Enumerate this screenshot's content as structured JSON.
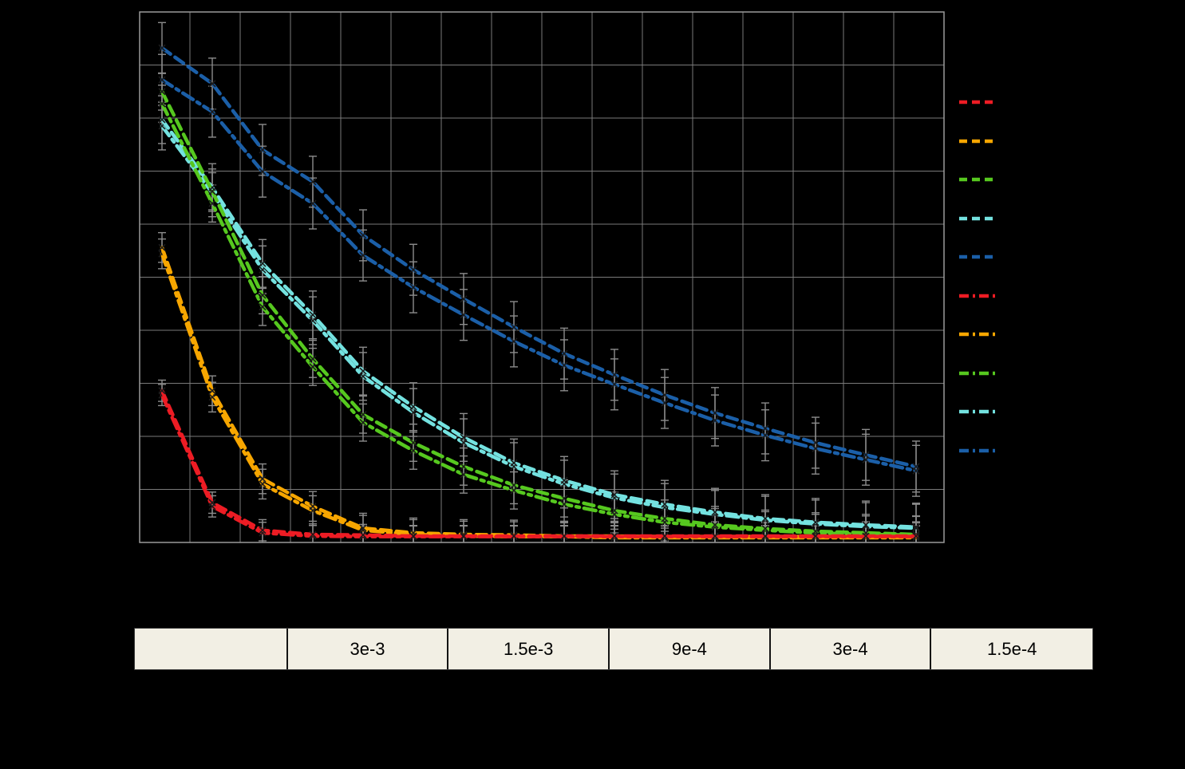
{
  "page": {
    "background": "#000000"
  },
  "chart_data": {
    "type": "line",
    "title": "",
    "xlabel": "",
    "ylabel": "",
    "x": [
      1,
      2,
      3,
      4,
      5,
      6,
      7,
      8,
      9,
      10,
      11,
      12,
      13,
      14,
      15,
      16
    ],
    "ylim": [
      0,
      1
    ],
    "grid": true,
    "grid_color": "#7a7a7a",
    "error_bar_color": "#8c8c8c",
    "marker": "x",
    "series": [
      {
        "name": "blue-dashdot",
        "color": "#1b5fa8",
        "dash": "dashdot",
        "err": 0.048,
        "values": [
          0.872,
          0.812,
          0.699,
          0.639,
          0.541,
          0.481,
          0.429,
          0.379,
          0.334,
          0.298,
          0.263,
          0.23,
          0.202,
          0.177,
          0.156,
          0.135
        ]
      },
      {
        "name": "blue-dashed",
        "color": "#1b5fa8",
        "dash": "dashed",
        "err": 0.048,
        "values": [
          0.932,
          0.865,
          0.74,
          0.68,
          0.579,
          0.514,
          0.459,
          0.406,
          0.356,
          0.316,
          0.278,
          0.244,
          0.215,
          0.188,
          0.165,
          0.143
        ]
      },
      {
        "name": "cyan-dashdot",
        "color": "#74e2e0",
        "dash": "dashdot",
        "err": 0.045,
        "values": [
          0.785,
          0.659,
          0.514,
          0.418,
          0.313,
          0.245,
          0.188,
          0.143,
          0.11,
          0.084,
          0.066,
          0.053,
          0.042,
          0.035,
          0.03,
          0.027
        ]
      },
      {
        "name": "cyan-dashed",
        "color": "#74e2e0",
        "dash": "dashed",
        "err": 0.045,
        "values": [
          0.797,
          0.669,
          0.526,
          0.429,
          0.323,
          0.256,
          0.198,
          0.15,
          0.117,
          0.09,
          0.072,
          0.057,
          0.045,
          0.038,
          0.033,
          0.029
        ]
      },
      {
        "name": "green-dashdot",
        "color": "#56c81f",
        "dash": "dashdot",
        "err": 0.035,
        "values": [
          0.827,
          0.639,
          0.444,
          0.331,
          0.226,
          0.173,
          0.128,
          0.098,
          0.072,
          0.053,
          0.038,
          0.029,
          0.023,
          0.018,
          0.015,
          0.014
        ]
      },
      {
        "name": "green-dashed",
        "color": "#56c81f",
        "dash": "dashed",
        "err": 0.035,
        "values": [
          0.85,
          0.662,
          0.466,
          0.346,
          0.241,
          0.188,
          0.143,
          0.108,
          0.083,
          0.06,
          0.045,
          0.033,
          0.026,
          0.021,
          0.018,
          0.015
        ]
      },
      {
        "name": "orange-dashdot",
        "color": "#f7a600",
        "dash": "dashdot",
        "err": 0.028,
        "values": [
          0.544,
          0.274,
          0.11,
          0.06,
          0.023,
          0.015,
          0.012,
          0.011,
          0.011,
          0.009,
          0.009,
          0.009,
          0.009,
          0.009,
          0.009,
          0.009
        ]
      },
      {
        "name": "orange-dashed",
        "color": "#f7a600",
        "dash": "dashed",
        "err": 0.028,
        "values": [
          0.556,
          0.286,
          0.12,
          0.068,
          0.027,
          0.018,
          0.015,
          0.014,
          0.012,
          0.012,
          0.011,
          0.011,
          0.011,
          0.011,
          0.011,
          0.011
        ]
      },
      {
        "name": "red-dashdot",
        "color": "#ed1c24",
        "dash": "dashdot",
        "err": 0.02,
        "values": [
          0.278,
          0.068,
          0.018,
          0.012,
          0.011,
          0.011,
          0.011,
          0.011,
          0.011,
          0.011,
          0.011,
          0.011,
          0.011,
          0.011,
          0.011,
          0.011
        ]
      },
      {
        "name": "red-dashed",
        "color": "#ed1c24",
        "dash": "dashed",
        "err": 0.02,
        "values": [
          0.286,
          0.075,
          0.023,
          0.015,
          0.014,
          0.012,
          0.012,
          0.012,
          0.012,
          0.012,
          0.012,
          0.012,
          0.012,
          0.012,
          0.012,
          0.012
        ]
      }
    ],
    "legend": {
      "position": "right",
      "items": [
        {
          "name": "red-dashed",
          "color": "#ed1c24",
          "dash": "dashed",
          "label": ""
        },
        {
          "name": "orange-dashed",
          "color": "#f7a600",
          "dash": "dashed",
          "label": ""
        },
        {
          "name": "green-dashed",
          "color": "#56c81f",
          "dash": "dashed",
          "label": ""
        },
        {
          "name": "cyan-dashed",
          "color": "#74e2e0",
          "dash": "dashed",
          "label": ""
        },
        {
          "name": "blue-dashed",
          "color": "#1b5fa8",
          "dash": "dashed",
          "label": ""
        },
        {
          "name": "red-dashdot",
          "color": "#ed1c24",
          "dash": "dashdot",
          "label": ""
        },
        {
          "name": "orange-dashdot",
          "color": "#f7a600",
          "dash": "dashdot",
          "label": ""
        },
        {
          "name": "green-dashdot",
          "color": "#56c81f",
          "dash": "dashdot",
          "label": ""
        },
        {
          "name": "cyan-dashdot",
          "color": "#74e2e0",
          "dash": "dashdot",
          "label": ""
        },
        {
          "name": "blue-dashdot",
          "color": "#1b5fa8",
          "dash": "dashdot",
          "label": ""
        }
      ]
    }
  },
  "table": {
    "cells": [
      "",
      "3e-3",
      "1.5e-3",
      "9e-4",
      "3e-4",
      "1.5e-4"
    ]
  }
}
